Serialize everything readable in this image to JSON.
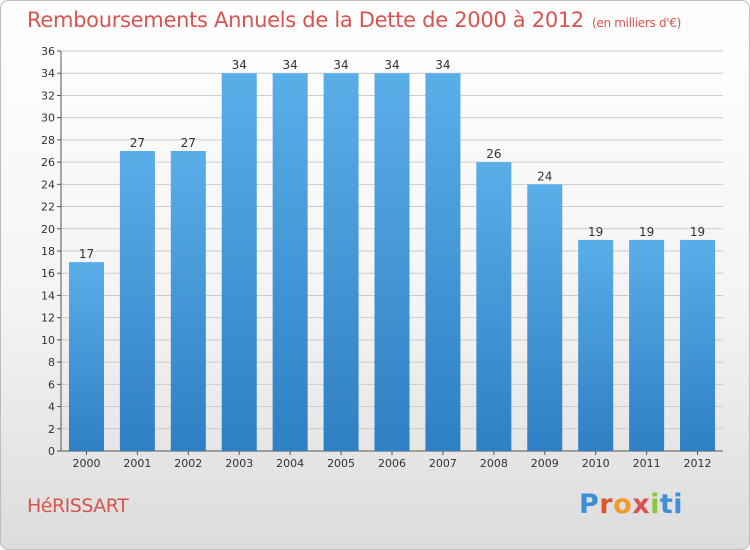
{
  "chart_data": {
    "type": "bar",
    "title": "Remboursements Annuels de la Dette de 2000 à 2012",
    "unit": "(en milliers d'€)",
    "categories": [
      "2000",
      "2001",
      "2002",
      "2003",
      "2004",
      "2005",
      "2006",
      "2007",
      "2008",
      "2009",
      "2010",
      "2011",
      "2012"
    ],
    "values": [
      17,
      27,
      27,
      34,
      34,
      34,
      34,
      34,
      26,
      24,
      19,
      19,
      19
    ],
    "ylim": [
      0,
      36
    ],
    "yticks": [
      0,
      2,
      4,
      6,
      8,
      10,
      12,
      14,
      16,
      18,
      20,
      22,
      24,
      26,
      28,
      30,
      32,
      34,
      36
    ],
    "grid": true,
    "xlabel": "",
    "ylabel": "",
    "colors": {
      "bar_top": "#5aaee8",
      "bar_bottom": "#2f7fc4",
      "grid": "#cccccc",
      "title": "#d9534f"
    }
  },
  "commune": "HéRISSART",
  "logo": {
    "letters": [
      "P",
      "r",
      "o",
      "x",
      "i",
      "ti"
    ]
  }
}
